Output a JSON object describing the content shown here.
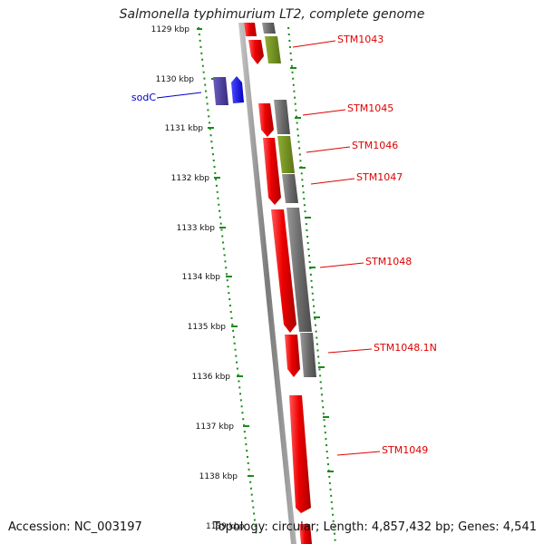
{
  "title": "Salmonella typhimurium LT2, complete genome",
  "footer": {
    "accession": "Accession: NC_003197",
    "topology": "Topology: circular; Length: 4,857,432 bp; Genes: 4,541"
  },
  "colors": {
    "background": "#ffffff",
    "backbone": "#8c8c8c",
    "forward_strand_gene": "#e30000",
    "reverse_strand_gene": "#0000ee",
    "forward_track_gene": "#6e6e6e",
    "forward_track_gene_alt": "#6f8f1f",
    "reverse_track_gene": "#4c3f9a",
    "label_red": "#e00000",
    "label_blue": "#0000cc",
    "tick_green": "#1a8a1a"
  },
  "scale": {
    "unit": "kbp",
    "ticks": [
      "1129 kbp",
      "1130 kbp",
      "1131 kbp",
      "1132 kbp",
      "1133 kbp",
      "1134 kbp",
      "1135 kbp",
      "1136 kbp",
      "1137 kbp",
      "1138 kbp",
      "1139 kbp"
    ]
  },
  "genes": [
    {
      "name": "STM1043",
      "strand": "+",
      "start": 1129.0,
      "end": 1129.6
    },
    {
      "name": "sodC",
      "strand": "-",
      "start": 1129.8,
      "end": 1130.3
    },
    {
      "name": "STM1045",
      "strand": "+",
      "start": 1130.5,
      "end": 1131.1
    },
    {
      "name": "STM1046",
      "strand": "+",
      "start": 1131.2,
      "end": 1131.9
    },
    {
      "name": "STM1047",
      "strand": "+",
      "start": 1131.9,
      "end": 1132.5
    },
    {
      "name": "STM1048",
      "strand": "+",
      "start": 1132.6,
      "end": 1135.0
    },
    {
      "name": "STM1048.1N",
      "strand": "+",
      "start": 1135.2,
      "end": 1136.1
    },
    {
      "name": "STM1049",
      "strand": "+",
      "start": 1136.4,
      "end": 1139.6
    }
  ]
}
